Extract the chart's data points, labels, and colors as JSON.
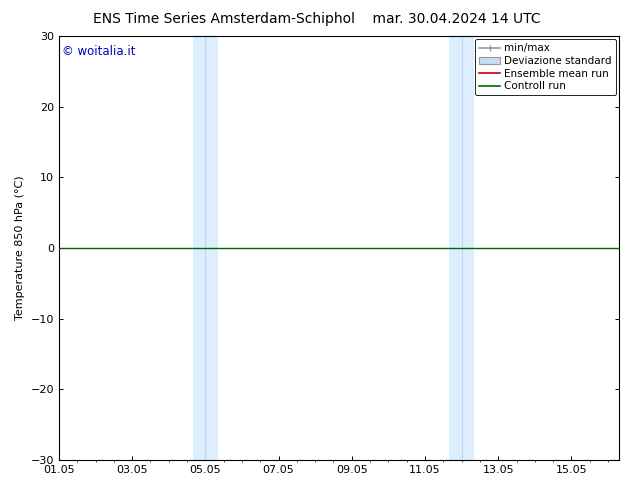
{
  "title_left": "ENS Time Series Amsterdam-Schiphol",
  "title_right": "mar. 30.04.2024 14 UTC",
  "ylabel": "Temperature 850 hPa (°C)",
  "ylim": [
    -30,
    30
  ],
  "yticks": [
    -30,
    -20,
    -10,
    0,
    10,
    20,
    30
  ],
  "xtick_labels": [
    "01.05",
    "03.05",
    "05.05",
    "07.05",
    "09.05",
    "11.05",
    "13.05",
    "15.05"
  ],
  "xtick_positions": [
    0,
    2,
    4,
    6,
    8,
    10,
    12,
    14
  ],
  "xlim": [
    0,
    15.3
  ],
  "shaded_bands": [
    {
      "x_start": 3.65,
      "x_end": 4.35,
      "divider": 4.0
    },
    {
      "x_start": 10.65,
      "x_end": 11.35,
      "divider": 11.0
    }
  ],
  "shaded_color": "#ddeeff",
  "divider_color": "#c0d8ee",
  "control_run_y": 0.0,
  "control_run_color": "#006600",
  "ensemble_mean_color": "#cc0000",
  "minmax_color": "#999999",
  "std_fill_color": "#c8ddf0",
  "std_edge_color": "#999999",
  "watermark_text": "© woitalia.it",
  "watermark_color": "#0000bb",
  "legend_labels": [
    "min/max",
    "Deviazione standard",
    "Ensemble mean run",
    "Controll run"
  ],
  "legend_line_colors": [
    "#999999",
    "#c8ddf0",
    "#cc0000",
    "#006600"
  ],
  "background_color": "#ffffff",
  "title_fontsize": 10,
  "axis_label_fontsize": 8,
  "tick_fontsize": 8,
  "legend_fontsize": 7.5
}
